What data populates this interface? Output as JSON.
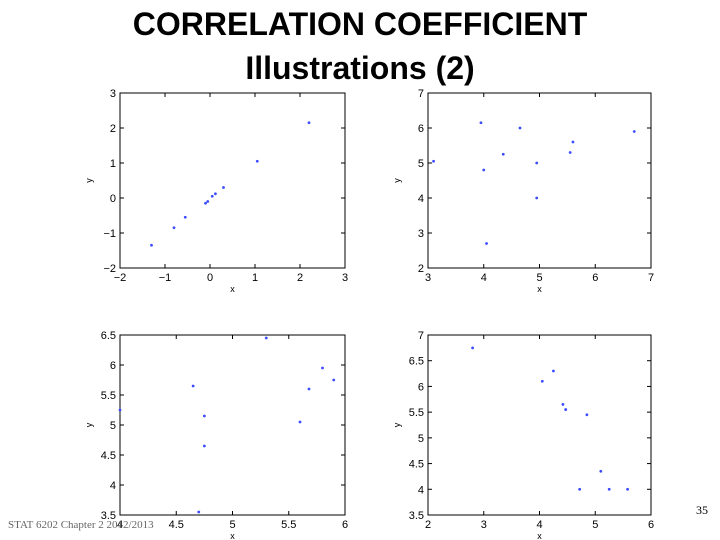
{
  "slide": {
    "title_line1": "CORRELATION COEFFICIENT",
    "title_line2": "Illustrations (2)",
    "footer": "STAT 6202 Chapter 2 2012/2013",
    "page_number": "35"
  },
  "colors": {
    "point": "#3b4bff",
    "axis": "#000000"
  },
  "chart_data": [
    {
      "type": "scatter",
      "xlabel": "x",
      "ylabel": "y",
      "xlim": [
        -2,
        3
      ],
      "ylim": [
        -2,
        3
      ],
      "xticks": [
        -2,
        -1,
        0,
        1,
        2,
        3
      ],
      "yticks": [
        -2,
        -1,
        0,
        1,
        2,
        3
      ],
      "x": [
        -1.3,
        -0.8,
        -0.55,
        -0.1,
        -0.05,
        0.05,
        0.12,
        0.3,
        1.05,
        2.2
      ],
      "y": [
        -1.35,
        -0.85,
        -0.55,
        -0.15,
        -0.1,
        0.05,
        0.12,
        0.3,
        1.05,
        2.15
      ]
    },
    {
      "type": "scatter",
      "xlabel": "x",
      "ylabel": "y",
      "xlim": [
        3,
        7
      ],
      "ylim": [
        2,
        7
      ],
      "xticks": [
        3,
        4,
        5,
        6,
        7
      ],
      "yticks": [
        2,
        3,
        4,
        5,
        6,
        7
      ],
      "x": [
        3.1,
        3.95,
        4.0,
        4.05,
        4.35,
        4.65,
        4.95,
        4.95,
        5.55,
        5.6,
        6.7
      ],
      "y": [
        5.05,
        6.15,
        4.8,
        2.7,
        5.25,
        6.0,
        5.0,
        4.0,
        5.3,
        5.6,
        5.9
      ]
    },
    {
      "type": "scatter",
      "xlabel": "x",
      "ylabel": "y",
      "xlim": [
        4,
        6
      ],
      "ylim": [
        3.5,
        6.5
      ],
      "xticks": [
        4,
        4.5,
        5,
        5.5,
        6
      ],
      "yticks": [
        3.5,
        4,
        4.5,
        5,
        5.5,
        6,
        6.5
      ],
      "x": [
        4.0,
        4.65,
        4.7,
        4.75,
        4.75,
        5.3,
        5.6,
        5.68,
        5.8,
        5.9
      ],
      "y": [
        5.25,
        5.65,
        3.55,
        4.65,
        5.15,
        6.45,
        5.05,
        5.6,
        5.95,
        5.75
      ]
    },
    {
      "type": "scatter",
      "xlabel": "x",
      "ylabel": "y",
      "xlim": [
        2,
        6
      ],
      "ylim": [
        3.5,
        7
      ],
      "xticks": [
        2,
        3,
        4,
        5,
        6
      ],
      "yticks": [
        3.5,
        4,
        4.5,
        5,
        5.5,
        6,
        6.5,
        7
      ],
      "x": [
        2.8,
        4.05,
        4.25,
        4.42,
        4.47,
        4.72,
        4.85,
        5.1,
        5.25,
        5.58
      ],
      "y": [
        6.75,
        6.1,
        6.3,
        5.65,
        5.55,
        4.0,
        5.45,
        4.35,
        4.0,
        4.0
      ]
    }
  ]
}
